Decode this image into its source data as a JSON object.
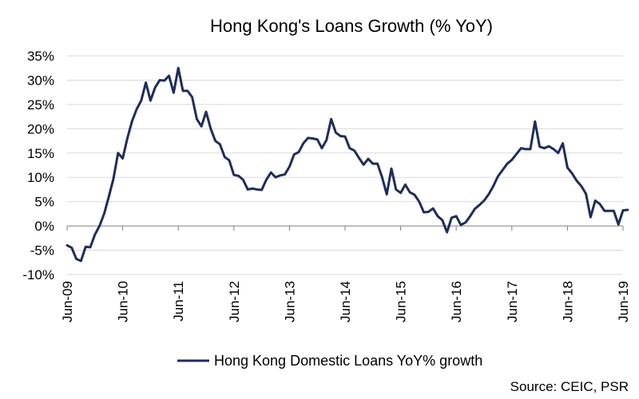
{
  "chart_data": {
    "type": "line",
    "title": "Hong Kong's Loans Growth (% YoY)",
    "xlabel": "",
    "ylabel": "",
    "ylim": [
      -10,
      35
    ],
    "yticks": [
      "35%",
      "30%",
      "25%",
      "20%",
      "15%",
      "10%",
      "5%",
      "0%",
      "-5%",
      "-10%"
    ],
    "ytick_values": [
      35,
      30,
      25,
      20,
      15,
      10,
      5,
      0,
      -5,
      -10
    ],
    "xticks": [
      "Jun-09",
      "Jun-10",
      "Jun-11",
      "Jun-12",
      "Jun-13",
      "Jun-14",
      "Jun-15",
      "Jun-16",
      "Jun-17",
      "Jun-18",
      "Jun-19"
    ],
    "grid": true,
    "legend_position": "bottom",
    "color": "#1f2d5a",
    "series": [
      {
        "name": "Hong Kong Domestic Loans YoY% growth",
        "start": "Jun-09",
        "frequency": "monthly",
        "values": [
          -4,
          -4.5,
          -6.8,
          -7.2,
          -4.3,
          -4.4,
          -1.8,
          0,
          2.5,
          6,
          9.7,
          15,
          13.9,
          18,
          21.5,
          24,
          25.8,
          29.5,
          25.8,
          28.5,
          30,
          29.9,
          30.9,
          27.4,
          32.5,
          27.8,
          27.8,
          26.5,
          22,
          20.5,
          23.5,
          20,
          17.5,
          16.8,
          14.2,
          13.5,
          10.5,
          10.3,
          9.5,
          7.5,
          7.7,
          7.5,
          7.4,
          9.5,
          11,
          10,
          10.4,
          10.6,
          12.2,
          14.7,
          15.2,
          17,
          18.1,
          18,
          17.8,
          16,
          17.7,
          22,
          19.2,
          18.5,
          18.4,
          16,
          15.5,
          14,
          12.6,
          13.8,
          12.8,
          12.8,
          10,
          6.5,
          11.8,
          7.5,
          6.8,
          8.5,
          6.9,
          6.4,
          5,
          2.8,
          2.9,
          3.6,
          2,
          1.2,
          -1.3,
          1.7,
          2,
          0.2,
          0.7,
          2,
          3.5,
          4.3,
          5.2,
          6.5,
          8.2,
          10.2,
          11.5,
          12.8,
          13.6,
          14.8,
          16,
          15.8,
          15.8,
          21.5,
          16.3,
          16,
          16.4,
          15.8,
          15,
          17,
          12,
          10.8,
          9.3,
          8.2,
          6.6,
          1.8,
          5.2,
          4.5,
          3.1,
          3.1,
          3.1,
          0.3,
          3.2,
          3.3
        ]
      }
    ]
  },
  "source": "Source: CEIC, PSR"
}
